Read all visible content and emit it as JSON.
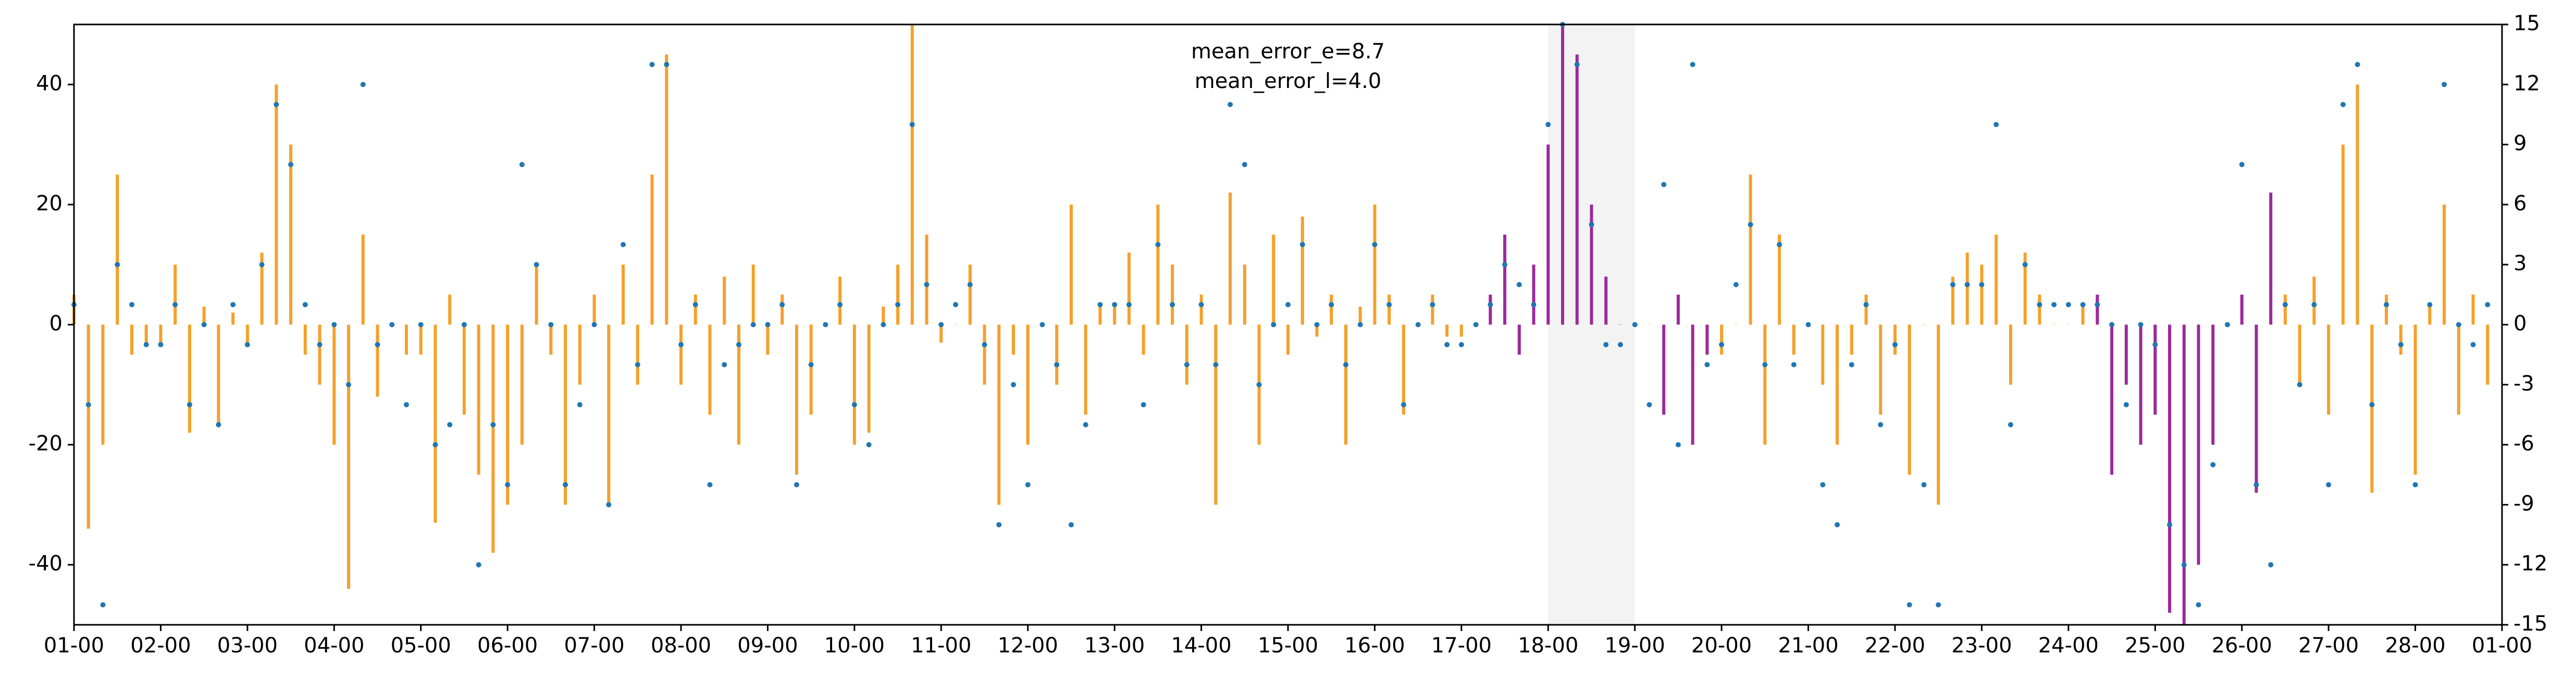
{
  "chart_data": {
    "type": "bar",
    "annotations": [
      "mean_error_e=8.7",
      "mean_error_l=4.0"
    ],
    "x": [
      0,
      4,
      8,
      12,
      16,
      20,
      24,
      28,
      32,
      36,
      40,
      44,
      48,
      52,
      56,
      60,
      64,
      68,
      72,
      76,
      80,
      84,
      88,
      92,
      96,
      100,
      104,
      108,
      112,
      116,
      120,
      124,
      128,
      132,
      136,
      140,
      144,
      148,
      152,
      156,
      160,
      164,
      168,
      172,
      176,
      180,
      184,
      188,
      192,
      196,
      200,
      204,
      208,
      212,
      216,
      220,
      224,
      228,
      232,
      236,
      240,
      244,
      248,
      252,
      256,
      260,
      264,
      268,
      272,
      276,
      280,
      284,
      288,
      292,
      296,
      300,
      304,
      308,
      312,
      316,
      320,
      324,
      328,
      332,
      336,
      340,
      344,
      348,
      352,
      356,
      360,
      364,
      368,
      372,
      376,
      380,
      384,
      388,
      392,
      396,
      400,
      404,
      408,
      412,
      416,
      420,
      424,
      428,
      432,
      436,
      440,
      444,
      448,
      452,
      456,
      460,
      464,
      468,
      472,
      476,
      480,
      484,
      488,
      492,
      496,
      500,
      504,
      508,
      512,
      516,
      520,
      524,
      528,
      532,
      536,
      540,
      544,
      548,
      552,
      556,
      560,
      564,
      568,
      572,
      576,
      580,
      584,
      588,
      592,
      596,
      600,
      604,
      608,
      612,
      616,
      620,
      624,
      628,
      632,
      636,
      640,
      644,
      648,
      652,
      656,
      660,
      664,
      668
    ],
    "series": [
      {
        "kind": "bar",
        "color": "#f5a02a",
        "values": [
          5,
          -34,
          -20,
          25,
          -5,
          -3,
          -3,
          10,
          -18,
          3,
          -17,
          2,
          -3,
          12,
          40,
          30,
          -5,
          -10,
          -20,
          -44,
          15,
          -12,
          0,
          -5,
          -5,
          -33,
          5,
          -15,
          -25,
          -38,
          -30,
          -20,
          10,
          -5,
          -30,
          -10,
          5,
          -30,
          10,
          -10,
          25,
          45,
          -10,
          5,
          -15,
          8,
          -20,
          10,
          -5,
          5,
          -25,
          -15,
          0,
          8,
          -20,
          -18,
          3,
          10,
          50,
          15,
          -3,
          0,
          10,
          -10,
          -30,
          -5,
          -20,
          0,
          -10,
          20,
          -15,
          3,
          3,
          12,
          -5,
          20,
          10,
          -10,
          5,
          -30,
          22,
          10,
          -20,
          15,
          -5,
          18,
          -2,
          5,
          -20,
          3,
          20,
          5,
          -15,
          0,
          5,
          -2,
          -2,
          0,
          null,
          null,
          null,
          null,
          null,
          null,
          null,
          null,
          null,
          null,
          0,
          0,
          null,
          null,
          null,
          null,
          -5,
          0,
          25,
          -20,
          15,
          -5,
          0,
          -10,
          -20,
          -5,
          5,
          -15,
          -5,
          -25,
          0,
          -30,
          8,
          12,
          10,
          15,
          -10,
          12,
          5,
          0,
          0,
          3,
          null,
          null,
          null,
          null,
          null,
          null,
          null,
          null,
          null,
          null,
          null,
          null,
          null,
          5,
          -10,
          8,
          -15,
          30,
          40,
          -28,
          5,
          -5,
          -25,
          3,
          20,
          -15,
          5,
          -10
        ]
      },
      {
        "kind": "bar",
        "color": "#9b2a9b",
        "values": [
          null,
          null,
          null,
          null,
          null,
          null,
          null,
          null,
          null,
          null,
          null,
          null,
          null,
          null,
          null,
          null,
          null,
          null,
          null,
          null,
          null,
          null,
          null,
          null,
          null,
          null,
          null,
          null,
          null,
          null,
          null,
          null,
          null,
          null,
          null,
          null,
          null,
          null,
          null,
          null,
          null,
          null,
          null,
          null,
          null,
          null,
          null,
          null,
          null,
          null,
          null,
          null,
          null,
          null,
          null,
          null,
          null,
          null,
          null,
          null,
          null,
          null,
          null,
          null,
          null,
          null,
          null,
          null,
          null,
          null,
          null,
          null,
          null,
          null,
          null,
          null,
          null,
          null,
          null,
          null,
          null,
          null,
          null,
          null,
          null,
          null,
          null,
          null,
          null,
          null,
          null,
          null,
          null,
          null,
          null,
          null,
          null,
          null,
          5,
          15,
          -5,
          10,
          30,
          50,
          45,
          20,
          8,
          0,
          null,
          null,
          -15,
          5,
          -20,
          -5,
          null,
          null,
          null,
          null,
          null,
          null,
          null,
          null,
          null,
          null,
          null,
          null,
          null,
          null,
          null,
          null,
          null,
          null,
          null,
          null,
          null,
          null,
          null,
          null,
          null,
          null,
          5,
          -25,
          -10,
          -20,
          -15,
          -48,
          -50,
          -40,
          -20,
          0,
          5,
          -28,
          22,
          null,
          null,
          null,
          null,
          null,
          null,
          null,
          null,
          null,
          null,
          null,
          null,
          null,
          null,
          null
        ]
      },
      {
        "kind": "scatter",
        "axis": "y2",
        "color": "#1f77b4",
        "values": [
          1,
          -4,
          -14,
          3,
          1,
          -1,
          -1,
          1,
          -4,
          0,
          -5,
          1,
          -1,
          3,
          11,
          8,
          1,
          -1,
          0,
          -3,
          12,
          -1,
          0,
          -4,
          0,
          -6,
          -5,
          0,
          -12,
          -5,
          -8,
          8,
          3,
          0,
          -8,
          -4,
          0,
          -9,
          4,
          -2,
          13,
          13,
          -1,
          1,
          -8,
          -2,
          -1,
          0,
          0,
          1,
          -8,
          -2,
          0,
          1,
          -4,
          -6,
          0,
          1,
          10,
          2,
          0,
          1,
          2,
          -1,
          -10,
          -3,
          -8,
          0,
          -2,
          -10,
          -5,
          1,
          1,
          1,
          -4,
          4,
          1,
          -2,
          1,
          -2,
          11,
          8,
          -3,
          0,
          1,
          4,
          0,
          1,
          -2,
          0,
          4,
          1,
          -4,
          0,
          1,
          -1,
          -1,
          0,
          1,
          3,
          2,
          1,
          10,
          15,
          13,
          5,
          -1,
          -1,
          0,
          -4,
          7,
          -6,
          13,
          -2,
          -1,
          2,
          5,
          -2,
          4,
          -2,
          0,
          -8,
          -10,
          -2,
          1,
          -5,
          -1,
          -14,
          -8,
          -14,
          2,
          2,
          2,
          10,
          -5,
          3,
          1,
          1,
          1,
          1,
          1,
          0,
          -4,
          0,
          -1,
          -10,
          -12,
          -14,
          -7,
          0,
          8,
          -8,
          -12,
          1,
          -3,
          1,
          -8,
          11,
          13,
          -4,
          1,
          -1,
          -8,
          1,
          12,
          0,
          -1,
          1
        ]
      }
    ],
    "highlight_span": [
      408,
      432
    ],
    "highlight_color": "#f3f3f3",
    "xlim": [
      0,
      672
    ],
    "xticks": [
      {
        "value": 0,
        "label": "01-00"
      },
      {
        "value": 24,
        "label": "02-00"
      },
      {
        "value": 48,
        "label": "03-00"
      },
      {
        "value": 72,
        "label": "04-00"
      },
      {
        "value": 96,
        "label": "05-00"
      },
      {
        "value": 120,
        "label": "06-00"
      },
      {
        "value": 144,
        "label": "07-00"
      },
      {
        "value": 168,
        "label": "08-00"
      },
      {
        "value": 192,
        "label": "09-00"
      },
      {
        "value": 216,
        "label": "10-00"
      },
      {
        "value": 240,
        "label": "11-00"
      },
      {
        "value": 264,
        "label": "12-00"
      },
      {
        "value": 288,
        "label": "13-00"
      },
      {
        "value": 312,
        "label": "14-00"
      },
      {
        "value": 336,
        "label": "15-00"
      },
      {
        "value": 360,
        "label": "16-00"
      },
      {
        "value": 384,
        "label": "17-00"
      },
      {
        "value": 408,
        "label": "18-00"
      },
      {
        "value": 432,
        "label": "19-00"
      },
      {
        "value": 456,
        "label": "20-00"
      },
      {
        "value": 480,
        "label": "21-00"
      },
      {
        "value": 504,
        "label": "22-00"
      },
      {
        "value": 528,
        "label": "23-00"
      },
      {
        "value": 552,
        "label": "24-00"
      },
      {
        "value": 576,
        "label": "25-00"
      },
      {
        "value": 600,
        "label": "26-00"
      },
      {
        "value": 624,
        "label": "27-00"
      },
      {
        "value": 648,
        "label": "28-00"
      },
      {
        "value": 672,
        "label": "01-00"
      }
    ],
    "ylim": [
      -50,
      50
    ],
    "yticks": [
      -40,
      -20,
      0,
      20,
      40
    ],
    "y2lim": [
      -15,
      15
    ],
    "y2ticks": [
      -15,
      -12,
      -9,
      -6,
      -3,
      0,
      3,
      6,
      9,
      12,
      15
    ]
  }
}
